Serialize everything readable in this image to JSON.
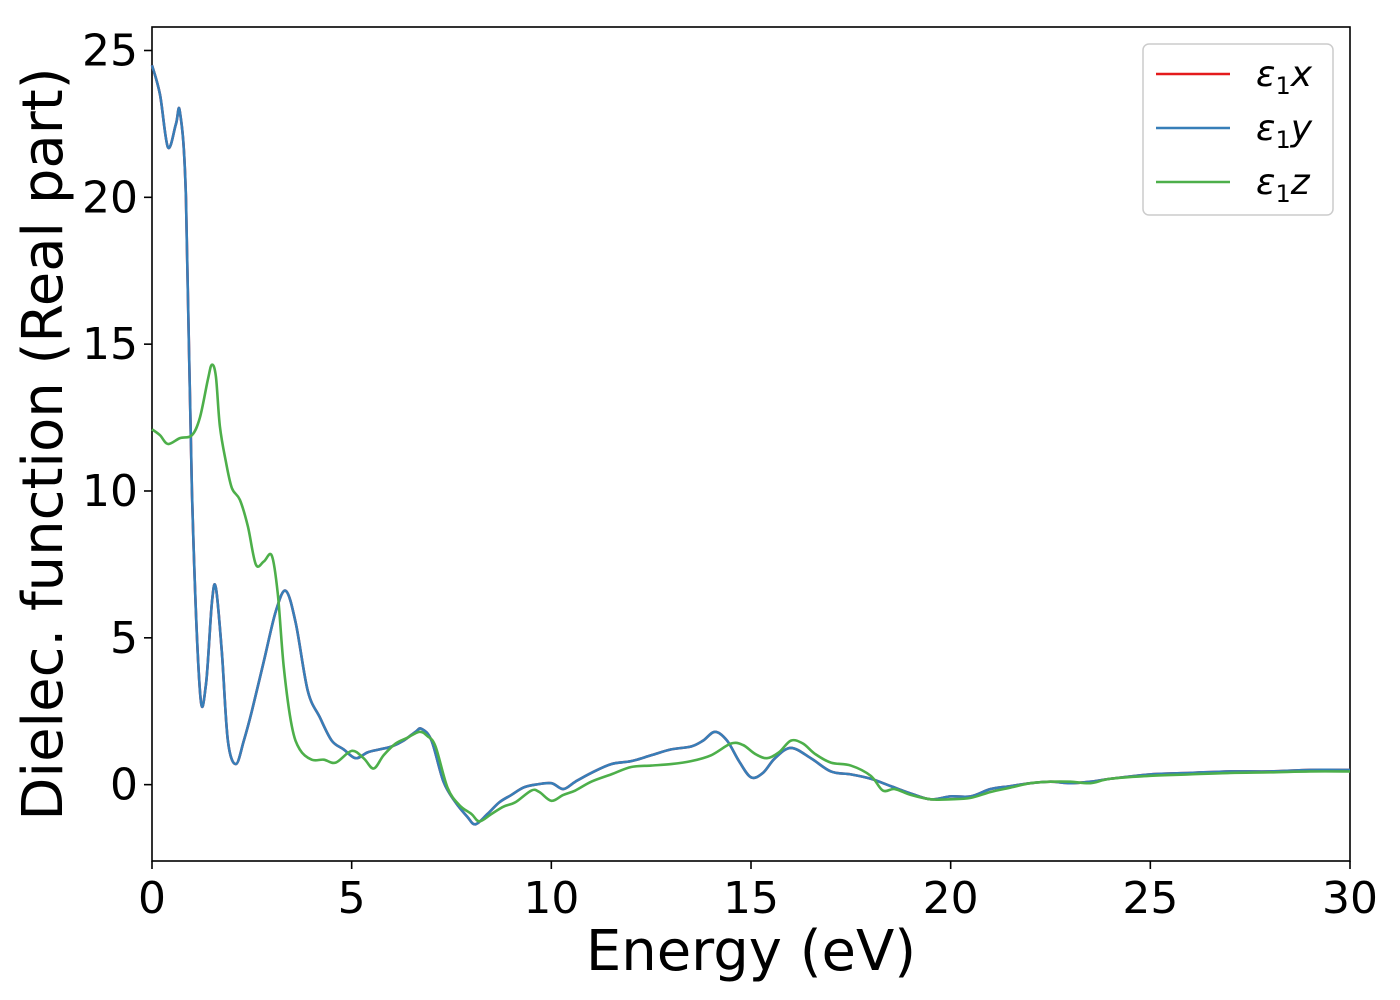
{
  "chart_data": {
    "type": "line",
    "xlabel": "Energy (eV)",
    "ylabel": "Dielec. function (Real part)",
    "xlim": [
      0,
      30
    ],
    "ylim": [
      -2.6,
      25.8
    ],
    "xticks": [
      0,
      5,
      10,
      15,
      20,
      25,
      30
    ],
    "xtick_labels": [
      "0",
      "5",
      "10",
      "15",
      "20",
      "25",
      "30"
    ],
    "yticks": [
      0,
      5,
      10,
      15,
      20,
      25
    ],
    "ytick_labels": [
      "0",
      "5",
      "10",
      "15",
      "20",
      "25"
    ],
    "grid": false,
    "legend_position": "top-right",
    "legend": [
      {
        "symbol": "ε",
        "subscript": "1",
        "suffix": "x",
        "color": "#e41a1c"
      },
      {
        "symbol": "ε",
        "subscript": "1",
        "suffix": "y",
        "color": "#377eb8"
      },
      {
        "symbol": "ε",
        "subscript": "1",
        "suffix": "z",
        "color": "#4daf4a"
      }
    ],
    "series": [
      {
        "name": "ε1x",
        "color": "#e41a1c",
        "x": [
          0,
          0.2,
          0.4,
          0.6,
          0.7,
          0.85,
          1.0,
          1.2,
          1.35,
          1.5,
          1.6,
          1.75,
          1.9,
          2.1,
          2.3,
          2.5,
          2.8,
          3.1,
          3.35,
          3.6,
          3.9,
          4.2,
          4.5,
          4.8,
          5.1,
          5.4,
          5.7,
          6.0,
          6.3,
          6.6,
          6.75,
          7.0,
          7.3,
          7.6,
          7.9,
          8.1,
          8.4,
          8.7,
          9.0,
          9.3,
          9.6,
          10.0,
          10.3,
          10.6,
          11.0,
          11.5,
          12.0,
          12.5,
          13.0,
          13.5,
          13.8,
          14.1,
          14.4,
          14.7,
          15.0,
          15.3,
          15.6,
          16.0,
          16.5,
          17.0,
          17.5,
          18.0,
          18.5,
          19.0,
          19.5,
          20.0,
          20.5,
          21.0,
          21.5,
          22.0,
          22.5,
          23.0,
          23.5,
          24.0,
          25.0,
          26.0,
          27.0,
          28.0,
          29.0,
          30.0
        ],
        "values": [
          24.5,
          23.5,
          21.7,
          22.5,
          22.9,
          20.0,
          10.0,
          3.2,
          3.4,
          6.2,
          6.7,
          4.5,
          1.5,
          0.7,
          1.5,
          2.5,
          4.2,
          5.9,
          6.6,
          5.5,
          3.2,
          2.3,
          1.5,
          1.2,
          0.9,
          1.1,
          1.2,
          1.3,
          1.5,
          1.8,
          1.9,
          1.5,
          0.1,
          -0.6,
          -1.1,
          -1.35,
          -1.0,
          -0.6,
          -0.35,
          -0.1,
          0.0,
          0.05,
          -0.15,
          0.1,
          0.4,
          0.7,
          0.8,
          1.0,
          1.2,
          1.3,
          1.5,
          1.8,
          1.5,
          0.8,
          0.25,
          0.4,
          0.9,
          1.25,
          0.9,
          0.45,
          0.35,
          0.2,
          -0.05,
          -0.3,
          -0.5,
          -0.4,
          -0.4,
          -0.15,
          -0.05,
          0.05,
          0.1,
          0.05,
          0.1,
          0.2,
          0.35,
          0.4,
          0.45,
          0.45,
          0.5,
          0.5
        ]
      },
      {
        "name": "ε1y",
        "color": "#377eb8",
        "x": [
          0,
          0.2,
          0.4,
          0.6,
          0.7,
          0.85,
          1.0,
          1.2,
          1.35,
          1.5,
          1.6,
          1.75,
          1.9,
          2.1,
          2.3,
          2.5,
          2.8,
          3.1,
          3.35,
          3.6,
          3.9,
          4.2,
          4.5,
          4.8,
          5.1,
          5.4,
          5.7,
          6.0,
          6.3,
          6.6,
          6.75,
          7.0,
          7.3,
          7.6,
          7.9,
          8.1,
          8.4,
          8.7,
          9.0,
          9.3,
          9.6,
          10.0,
          10.3,
          10.6,
          11.0,
          11.5,
          12.0,
          12.5,
          13.0,
          13.5,
          13.8,
          14.1,
          14.4,
          14.7,
          15.0,
          15.3,
          15.6,
          16.0,
          16.5,
          17.0,
          17.5,
          18.0,
          18.5,
          19.0,
          19.5,
          20.0,
          20.5,
          21.0,
          21.5,
          22.0,
          22.5,
          23.0,
          23.5,
          24.0,
          25.0,
          26.0,
          27.0,
          28.0,
          29.0,
          30.0
        ],
        "values": [
          24.5,
          23.5,
          21.7,
          22.5,
          22.9,
          20.0,
          10.0,
          3.2,
          3.4,
          6.2,
          6.7,
          4.5,
          1.5,
          0.7,
          1.5,
          2.5,
          4.2,
          5.9,
          6.6,
          5.5,
          3.2,
          2.3,
          1.5,
          1.2,
          0.9,
          1.1,
          1.2,
          1.3,
          1.5,
          1.8,
          1.9,
          1.5,
          0.1,
          -0.6,
          -1.1,
          -1.35,
          -1.0,
          -0.6,
          -0.35,
          -0.1,
          0.0,
          0.05,
          -0.15,
          0.1,
          0.4,
          0.7,
          0.8,
          1.0,
          1.2,
          1.3,
          1.5,
          1.8,
          1.5,
          0.8,
          0.25,
          0.4,
          0.9,
          1.25,
          0.9,
          0.45,
          0.35,
          0.2,
          -0.05,
          -0.3,
          -0.5,
          -0.4,
          -0.4,
          -0.15,
          -0.05,
          0.05,
          0.1,
          0.05,
          0.1,
          0.2,
          0.35,
          0.4,
          0.45,
          0.45,
          0.5,
          0.5
        ]
      },
      {
        "name": "ε1z",
        "color": "#4daf4a",
        "x": [
          0,
          0.2,
          0.4,
          0.7,
          1.0,
          1.2,
          1.4,
          1.5,
          1.6,
          1.7,
          1.85,
          2.0,
          2.2,
          2.4,
          2.6,
          2.8,
          3.0,
          3.15,
          3.3,
          3.5,
          3.7,
          4.0,
          4.3,
          4.6,
          5.0,
          5.3,
          5.55,
          5.8,
          6.1,
          6.4,
          6.7,
          6.9,
          7.1,
          7.4,
          7.7,
          8.0,
          8.2,
          8.5,
          8.8,
          9.1,
          9.5,
          9.7,
          10.0,
          10.3,
          10.6,
          11.0,
          11.5,
          12.0,
          12.5,
          13.0,
          13.5,
          14.0,
          14.5,
          14.8,
          15.1,
          15.4,
          15.7,
          16.0,
          16.3,
          16.6,
          17.0,
          17.5,
          18.0,
          18.3,
          18.6,
          19.0,
          19.5,
          20.0,
          20.5,
          21.0,
          21.5,
          22.0,
          22.5,
          23.0,
          23.5,
          24.0,
          25.0,
          26.0,
          27.0,
          28.0,
          29.0,
          30.0
        ],
        "values": [
          12.1,
          11.9,
          11.6,
          11.8,
          11.9,
          12.5,
          13.8,
          14.3,
          13.9,
          12.2,
          11.0,
          10.1,
          9.7,
          8.8,
          7.5,
          7.6,
          7.8,
          6.5,
          4.0,
          2.0,
          1.2,
          0.85,
          0.85,
          0.75,
          1.15,
          0.9,
          0.55,
          1.0,
          1.4,
          1.6,
          1.8,
          1.65,
          1.3,
          -0.1,
          -0.7,
          -1.0,
          -1.25,
          -1.0,
          -0.75,
          -0.6,
          -0.2,
          -0.25,
          -0.55,
          -0.35,
          -0.2,
          0.1,
          0.35,
          0.6,
          0.65,
          0.7,
          0.8,
          1.0,
          1.4,
          1.35,
          1.05,
          0.9,
          1.1,
          1.5,
          1.4,
          1.05,
          0.75,
          0.65,
          0.3,
          -0.2,
          -0.15,
          -0.35,
          -0.5,
          -0.5,
          -0.45,
          -0.25,
          -0.1,
          0.05,
          0.1,
          0.1,
          0.05,
          0.2,
          0.3,
          0.35,
          0.4,
          0.42,
          0.45,
          0.45
        ]
      }
    ]
  }
}
